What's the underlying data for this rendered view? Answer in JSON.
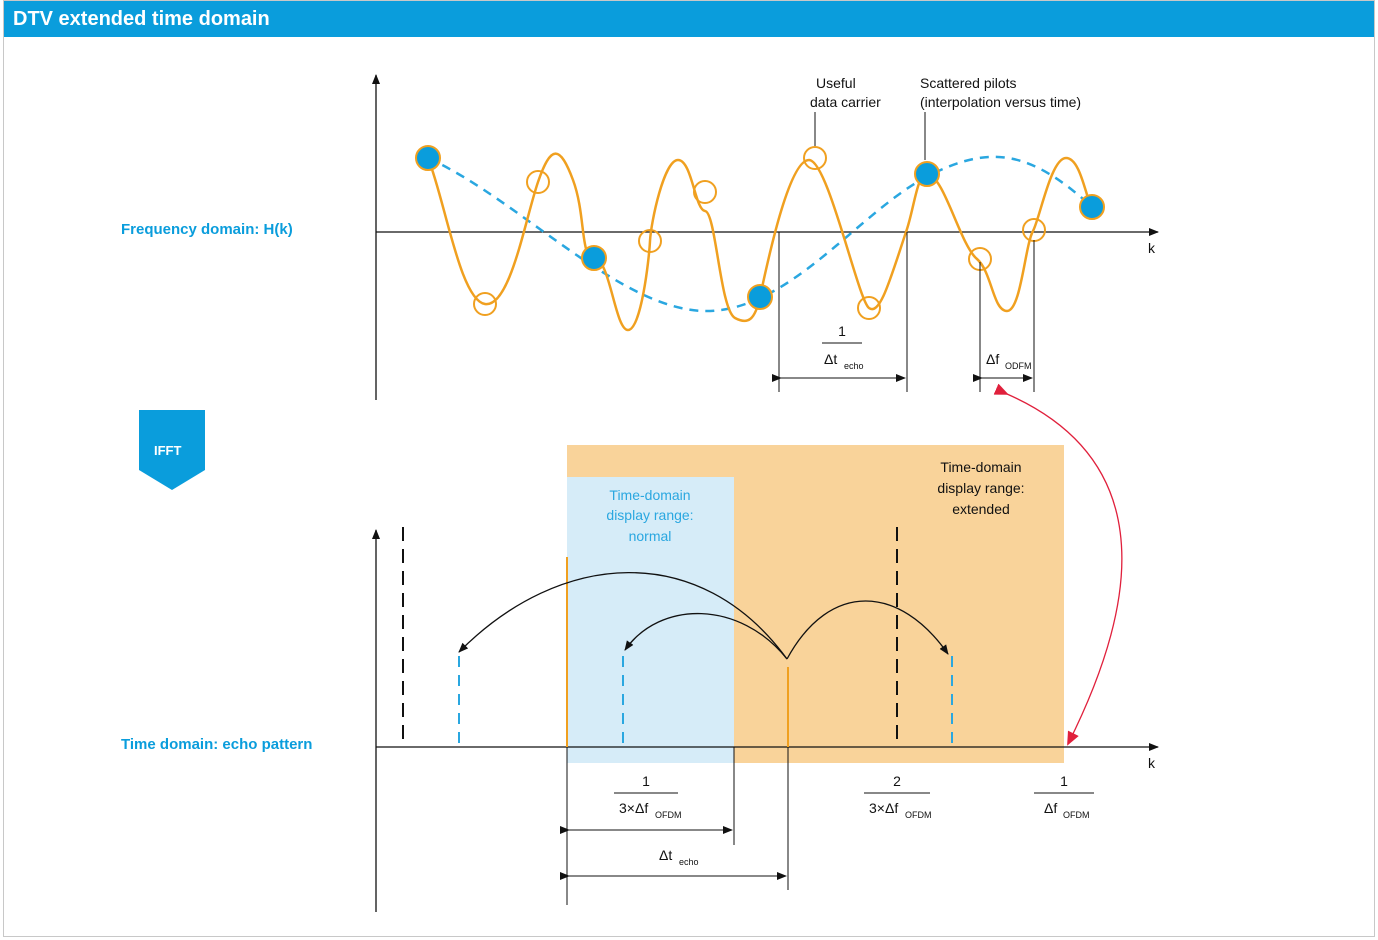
{
  "title": "DTV extended time domain",
  "labels": {
    "freq_domain": "Frequency domain: H(k)",
    "time_domain": "Time domain: echo pattern",
    "ifft": "IFFT",
    "useful_1": "Useful",
    "useful_2": "data carrier",
    "pilots_1": "Scattered pilots",
    "pilots_2": "(interpolation versus time)",
    "axis_k_top": "k",
    "axis_k_bottom": "k",
    "normal_1": "Time-domain",
    "normal_2": "display range:",
    "normal_3": "normal",
    "extended_1": "Time-domain",
    "extended_2": "display range:",
    "extended_3": "extended",
    "one": "1",
    "two": "2",
    "delta_t": "Δt",
    "echo_sub": "echo",
    "delta_f": "Δf",
    "odfm_sub": "ODFM",
    "ofdm_sub": "OFDM",
    "three_x_delta_f": "3×Δf"
  },
  "colors": {
    "accent_blue": "#0a9ddc",
    "orange": "#f0a020",
    "orange_fill": "#f9d39a",
    "light_blue_fill": "#d6ecf8",
    "red_arrow": "#e0203c"
  }
}
